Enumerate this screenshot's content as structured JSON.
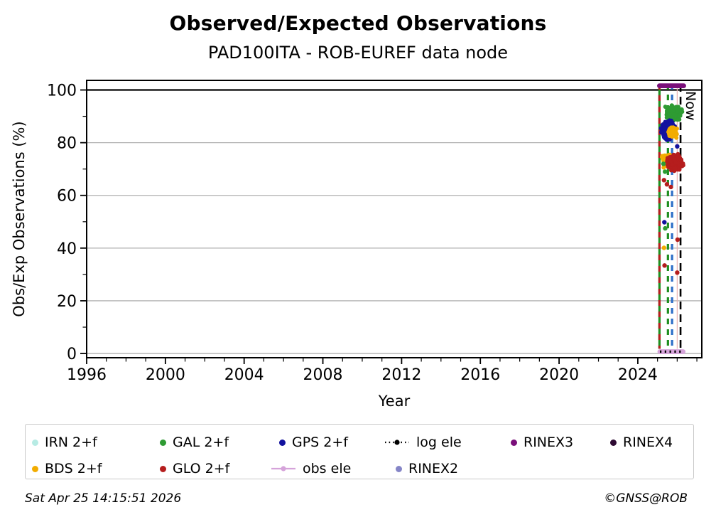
{
  "header": {
    "title": "Observed/Expected Observations",
    "subtitle": "PAD100ITA - ROB-EUREF data node"
  },
  "footer": {
    "timestamp": "Sat Apr 25 14:15:51 2026",
    "credit": "©GNSS@ROB"
  },
  "chart_data": {
    "type": "scatter",
    "title": "Observed/Expected Observations",
    "subtitle": "PAD100ITA - ROB-EUREF data node",
    "xlabel": "Year",
    "ylabel": "Obs/Exp Observations (%)",
    "xlim": [
      1996,
      2027.25
    ],
    "ylim": [
      -1.6,
      103.65
    ],
    "xticks": [
      1996,
      2000,
      2004,
      2008,
      2012,
      2016,
      2020,
      2024
    ],
    "yticks": [
      0,
      20,
      40,
      60,
      80,
      100
    ],
    "x_minor_step_years": 1,
    "y_minor_step": 10,
    "grid": {
      "horizontal_major": true,
      "color": "#b0b0b0",
      "hundred_line_color": "#000000"
    },
    "now_marker": {
      "label": "Now",
      "year": 2026.17
    },
    "event_vlines": [
      {
        "name": "red-green-dashed",
        "year": 2025.1,
        "colors": [
          "#1f8f1f",
          "#b51d1d"
        ],
        "style": "dashed"
      },
      {
        "name": "green-dashed",
        "year": 2025.53,
        "colors": [
          "#1f8f1f"
        ],
        "style": "dashed"
      },
      {
        "name": "blue-dashed",
        "year": 2025.74,
        "colors": [
          "#2f6fc8"
        ],
        "style": "dashed"
      },
      {
        "name": "thin-pink",
        "year": 2026.0,
        "colors": [
          "#e8b0b0"
        ],
        "style": "thin-solid"
      }
    ],
    "spans": [
      {
        "name": "RINEX3",
        "y": 101.6,
        "from": 2025.1,
        "to": 2026.33,
        "color": "#7a0f7a",
        "style": "solid"
      },
      {
        "name": "obs ele",
        "y": 0.7,
        "from": 2025.12,
        "to": 2026.3,
        "color": "#d5a3da",
        "style": "solid"
      },
      {
        "name": "log ele",
        "y": 0.7,
        "from": 2025.12,
        "to": 2026.3,
        "color": "#000000",
        "style": "dotted"
      }
    ],
    "clusters": [
      {
        "series": "GAL 2+f",
        "color_key": "gal",
        "cx": 2025.82,
        "cy": 91.4,
        "rx": 0.5,
        "ry": 3.1,
        "n": 300,
        "xmin": 2025.28,
        "xmax": 2026.38,
        "ymin": 85.6,
        "ymax": 97.4,
        "seed": 11
      },
      {
        "series": "GPS 2+f",
        "color_key": "gps",
        "cx": 2025.52,
        "cy": 84.8,
        "rx": 0.4,
        "ry": 4.4,
        "n": 300,
        "xmin": 2025.07,
        "xmax": 2026.18,
        "ymin": 75.2,
        "ymax": 93.4,
        "seed": 22
      },
      {
        "series": "BDS 2+f",
        "color_key": "bds",
        "cx": 2025.74,
        "cy": 84.0,
        "rx": 0.3,
        "ry": 2.4,
        "n": 90,
        "xmin": 2025.3,
        "xmax": 2026.2,
        "ymin": 79.6,
        "ymax": 88.6,
        "seed": 33
      },
      {
        "series": "BDS 2+f",
        "color_key": "bds",
        "cx": 2025.52,
        "cy": 73.3,
        "rx": 0.36,
        "ry": 3.2,
        "n": 130,
        "xmin": 2025.12,
        "xmax": 2026.15,
        "ymin": 65.9,
        "ymax": 79.2,
        "seed": 44
      },
      {
        "series": "GLO 2+f",
        "color_key": "glo",
        "cx": 2025.88,
        "cy": 72.6,
        "rx": 0.5,
        "ry": 3.7,
        "n": 380,
        "xmin": 2025.18,
        "xmax": 2026.42,
        "ymin": 63.4,
        "ymax": 80.2,
        "seed": 55
      }
    ],
    "outlier_points": [
      {
        "color_key": "glo",
        "x": 2025.33,
        "y": 65.8
      },
      {
        "color_key": "glo",
        "x": 2025.48,
        "y": 64.2
      },
      {
        "color_key": "glo",
        "x": 2025.68,
        "y": 63.2
      },
      {
        "color_key": "gal",
        "x": 2025.3,
        "y": 72.0
      },
      {
        "color_key": "gal",
        "x": 2025.38,
        "y": 69.0
      },
      {
        "color_key": "gps",
        "x": 2026.0,
        "y": 78.6
      },
      {
        "color_key": "gps",
        "x": 2025.35,
        "y": 49.8
      },
      {
        "color_key": "gal",
        "x": 2025.39,
        "y": 47.5
      },
      {
        "color_key": "glo",
        "x": 2026.02,
        "y": 43.2
      },
      {
        "color_key": "bds",
        "x": 2025.33,
        "y": 40.1
      },
      {
        "color_key": "glo",
        "x": 2025.36,
        "y": 33.4
      },
      {
        "color_key": "glo",
        "x": 2026.0,
        "y": 30.7
      }
    ],
    "series_colors": {
      "irn": "#b7ebe4",
      "gal": "#2e9b33",
      "gps": "#12129e",
      "bds": "#f2ac00",
      "glo": "#b51d1d",
      "rinex3": "#7a0f7a",
      "rinex4": "#2e0b33",
      "rinex2": "#8585c7",
      "obs_ele": "#d5a3da",
      "log_ele": "#000000"
    }
  },
  "legend": {
    "items": [
      {
        "label": "IRN 2+f",
        "marker": "dot",
        "color": "#b7ebe4"
      },
      {
        "label": "GAL 2+f",
        "marker": "dot",
        "color": "#2e9b33"
      },
      {
        "label": "GPS 2+f",
        "marker": "dot",
        "color": "#12129e"
      },
      {
        "label": "log ele",
        "marker": "dotline",
        "color": "#000000"
      },
      {
        "label": "RINEX3",
        "marker": "dot",
        "color": "#7a0f7a"
      },
      {
        "label": "RINEX4",
        "marker": "dot",
        "color": "#2e0b33"
      },
      {
        "label": "BDS 2+f",
        "marker": "dot",
        "color": "#f2ac00"
      },
      {
        "label": "GLO 2+f",
        "marker": "dot",
        "color": "#b51d1d"
      },
      {
        "label": "obs ele",
        "marker": "line",
        "color": "#d5a3da"
      },
      {
        "label": "RINEX2",
        "marker": "dot",
        "color": "#8585c7"
      }
    ]
  }
}
